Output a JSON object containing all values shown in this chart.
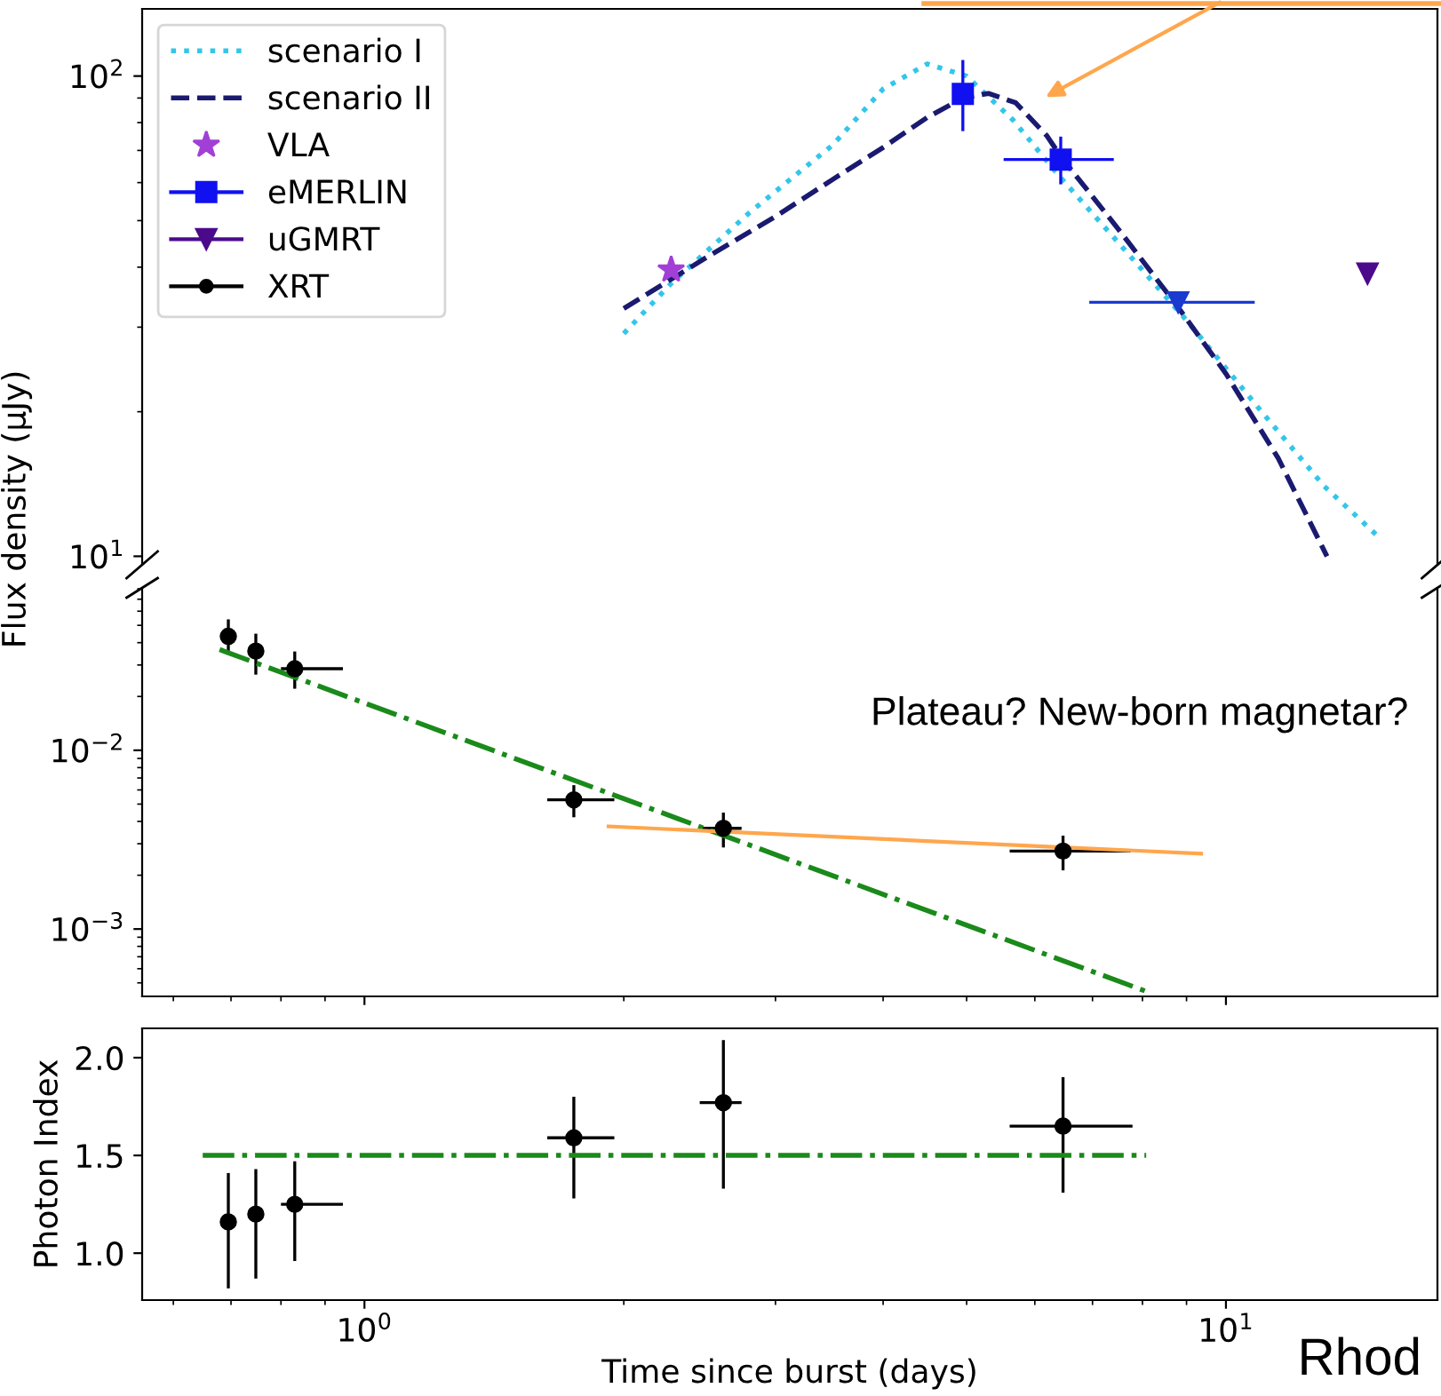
{
  "chart_data": [
    {
      "type": "line",
      "ylabel": "Flux density (μJy)",
      "xlim": [
        0.552,
        17.6
      ],
      "ylim": [
        9.6,
        138
      ],
      "log": "xy",
      "tick_labels": "y",
      "legend": "top left",
      "yticks": [
        {
          "value": 100,
          "label": "10$^{2}$"
        },
        {
          "value": 10,
          "label": "10$^{1}$"
        }
      ],
      "series": [
        {
          "name": "scenario I",
          "line_style": "dotted",
          "color": "#33c6ea",
          "x": [
            2.0,
            2.27,
            2.8,
            3.5,
            4.0,
            4.5,
            5.0,
            5.66,
            6.4,
            7.5,
            9,
            11,
            13,
            15.1
          ],
          "values": [
            29.1,
            37,
            52,
            72,
            94,
            106,
            100,
            81,
            62,
            45,
            31,
            20,
            14,
            10.9
          ]
        },
        {
          "name": "scenario II",
          "line_style": "dashed",
          "color": "#1a1a70",
          "x": [
            2.0,
            2.5,
            3,
            3.5,
            4,
            4.5,
            4.95,
            5.3,
            5.7,
            6.2,
            6.43,
            7.5,
            8.8,
            10,
            11.5,
            13.1
          ],
          "values": [
            32.8,
            42,
            51,
            61,
            71,
            82,
            90,
            92,
            88,
            75,
            68,
            48,
            33,
            24,
            16,
            10
          ]
        },
        {
          "name": "VLA",
          "type": "scatter",
          "marker": "star",
          "color": "#a23fd6",
          "x": [
            2.27
          ],
          "values": [
            39.5
          ]
        },
        {
          "name": "eMERLIN",
          "type": "scatter",
          "marker": "square",
          "color": "#1010f0",
          "x": [
            4.95,
            6.43
          ],
          "values": [
            91.8,
            67
          ],
          "errors": [
            [
              76.8,
              108
            ],
            [
              59.5,
              74.8
            ]
          ],
          "xerrors": [
            null,
            [
              5.52,
              7.41
            ]
          ]
        },
        {
          "name": "uGMRT",
          "type": "scatter",
          "marker": "triangle",
          "color": "#4b0a8c",
          "colors": [
            "#1a3ad0",
            "#4b0a8c"
          ],
          "x": [
            8.8,
            14.6
          ],
          "values": [
            33.8,
            38.8
          ],
          "xerrors": [
            [
              6.94,
              10.8
            ],
            null
          ]
        }
      ]
    },
    {
      "type": "scatter",
      "xlim": [
        0.552,
        17.6
      ],
      "ylim": [
        0.00042,
        0.081
      ],
      "log": "xy",
      "tick_labels": "y",
      "yticks": [
        {
          "value": 0.01,
          "label": "10$^{−2}$"
        },
        {
          "value": 0.001,
          "label": "10$^{−3}$"
        }
      ],
      "annotations": [
        "Plateau? New-born magnetar?"
      ],
      "series": [
        {
          "name": "XRT",
          "marker": "circle",
          "color": "#000000",
          "x": [
            0.695,
            0.748,
            0.83,
            1.75,
            2.61,
            6.47
          ],
          "values": [
            0.0434,
            0.0359,
            0.0286,
            0.00528,
            0.00366,
            0.00273
          ],
          "errors": [
            [
              0.0357,
              0.054
            ],
            [
              0.0265,
              0.0449
            ],
            [
              0.0221,
              0.0357
            ],
            [
              0.00422,
              0.00638
            ],
            [
              0.00286,
              0.00448
            ],
            [
              0.00213,
              0.00333
            ]
          ],
          "xerrors": [
            null,
            null,
            [
              0.8,
              0.944
            ],
            [
              1.63,
              1.95
            ],
            [
              2.45,
              2.74
            ],
            [
              5.61,
              7.75
            ]
          ]
        },
        {
          "type": "line",
          "line_style": "dashdot",
          "color": "#1a8a1a",
          "x": [
            0.679,
            8.08
          ],
          "values": [
            0.0366,
            0.000448
          ]
        },
        {
          "type": "line",
          "line_style": "solid",
          "color": "#ffa64d",
          "x": [
            1.92,
            9.36
          ],
          "values": [
            0.00375,
            0.00264
          ]
        }
      ]
    },
    {
      "type": "scatter",
      "xlabel": "Time since burst (days)",
      "ylabel": "Photon Index",
      "xlim": [
        0.552,
        17.6
      ],
      "ylim": [
        0.76,
        2.15
      ],
      "log": "x",
      "xticks": [
        {
          "value": 1,
          "label": "10$^{0}$"
        },
        {
          "value": 10,
          "label": "10$^{1}$"
        }
      ],
      "yticks": [
        {
          "value": 1.0,
          "label": "1.0"
        },
        {
          "value": 1.5,
          "label": "1.5"
        },
        {
          "value": 2.0,
          "label": "2.0"
        }
      ],
      "annotations": [
        "Rhod"
      ],
      "series": [
        {
          "marker": "circle",
          "color": "#000000",
          "x": [
            0.695,
            0.748,
            0.83,
            1.75,
            2.61,
            6.47
          ],
          "values": [
            1.16,
            1.2,
            1.25,
            1.59,
            1.77,
            1.65
          ],
          "errors": [
            [
              0.82,
              1.41
            ],
            [
              0.87,
              1.43
            ],
            [
              0.96,
              1.47
            ],
            [
              1.28,
              1.8
            ],
            [
              1.33,
              2.09
            ],
            [
              1.31,
              1.9
            ]
          ],
          "xerrors": [
            null,
            null,
            [
              0.8,
              0.944
            ],
            [
              1.63,
              1.95
            ],
            [
              2.45,
              2.74
            ],
            [
              5.61,
              7.79
            ]
          ]
        },
        {
          "type": "line",
          "line_style": "dashdot",
          "color": "#1a8a1a",
          "x": [
            0.649,
            8.08
          ],
          "values": [
            1.5,
            1.5
          ]
        }
      ]
    }
  ]
}
